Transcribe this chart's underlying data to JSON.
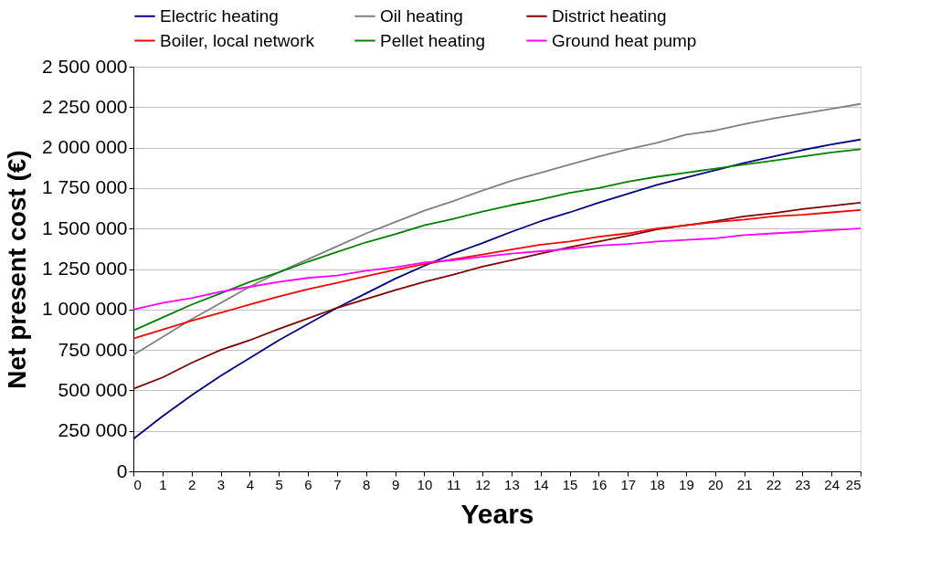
{
  "chart_data": {
    "type": "line",
    "xlabel": "Years",
    "ylabel": "Net present cost (€)",
    "x": [
      0,
      1,
      2,
      3,
      4,
      5,
      6,
      7,
      8,
      9,
      10,
      11,
      12,
      13,
      14,
      15,
      16,
      17,
      18,
      19,
      20,
      21,
      22,
      23,
      24,
      25
    ],
    "xlim": [
      0,
      25
    ],
    "xticks": [
      0,
      1,
      2,
      3,
      4,
      5,
      6,
      7,
      8,
      9,
      10,
      11,
      12,
      13,
      14,
      15,
      16,
      17,
      18,
      19,
      20,
      21,
      22,
      23,
      24,
      25
    ],
    "ylim": [
      0,
      2500000
    ],
    "yticks": [
      {
        "value": 0,
        "label": "0"
      },
      {
        "value": 250000,
        "label": "250 000"
      },
      {
        "value": 500000,
        "label": "500 000"
      },
      {
        "value": 750000,
        "label": "750 000"
      },
      {
        "value": 1000000,
        "label": "1 000 000"
      },
      {
        "value": 1250000,
        "label": "1 250 000"
      },
      {
        "value": 1500000,
        "label": "1 500 000"
      },
      {
        "value": 1750000,
        "label": "1 750 000"
      },
      {
        "value": 2000000,
        "label": "2 000 000"
      },
      {
        "value": 2250000,
        "label": "2 250 000"
      },
      {
        "value": 2500000,
        "label": "2 500 000"
      }
    ],
    "grid": "y",
    "legend": "top",
    "marker": "none",
    "line_style": "solid",
    "series": [
      {
        "name": "Electric heating",
        "color": "#000080",
        "values": [
          200000,
          340000,
          470000,
          590000,
          700000,
          810000,
          910000,
          1010000,
          1100000,
          1190000,
          1270000,
          1345000,
          1410000,
          1480000,
          1545000,
          1600000,
          1660000,
          1715000,
          1770000,
          1815000,
          1860000,
          1905000,
          1945000,
          1985000,
          2020000,
          2050000
        ]
      },
      {
        "name": "Oil heating",
        "color": "#808080",
        "values": [
          720000,
          830000,
          940000,
          1040000,
          1140000,
          1230000,
          1310000,
          1390000,
          1470000,
          1540000,
          1610000,
          1670000,
          1735000,
          1795000,
          1845000,
          1895000,
          1945000,
          1990000,
          2030000,
          2080000,
          2105000,
          2145000,
          2180000,
          2210000,
          2240000,
          2270000
        ]
      },
      {
        "name": "District heating",
        "color": "#800000",
        "values": [
          510000,
          580000,
          670000,
          750000,
          810000,
          880000,
          945000,
          1010000,
          1065000,
          1120000,
          1170000,
          1215000,
          1265000,
          1305000,
          1345000,
          1385000,
          1420000,
          1455000,
          1495000,
          1520000,
          1545000,
          1575000,
          1595000,
          1620000,
          1640000,
          1660000
        ]
      },
      {
        "name": "Boiler, local network",
        "color": "#ff0000",
        "values": [
          820000,
          875000,
          930000,
          980000,
          1030000,
          1080000,
          1125000,
          1165000,
          1205000,
          1245000,
          1280000,
          1310000,
          1340000,
          1370000,
          1400000,
          1420000,
          1450000,
          1470000,
          1500000,
          1520000,
          1540000,
          1555000,
          1575000,
          1585000,
          1600000,
          1615000
        ]
      },
      {
        "name": "Pellet heating",
        "color": "#008000",
        "values": [
          870000,
          950000,
          1030000,
          1100000,
          1170000,
          1230000,
          1295000,
          1355000,
          1415000,
          1465000,
          1520000,
          1560000,
          1605000,
          1645000,
          1680000,
          1720000,
          1750000,
          1790000,
          1820000,
          1845000,
          1870000,
          1895000,
          1920000,
          1945000,
          1970000,
          1990000
        ]
      },
      {
        "name": "Ground heat pump",
        "color": "#ff00ff",
        "values": [
          1000000,
          1040000,
          1070000,
          1110000,
          1140000,
          1170000,
          1195000,
          1210000,
          1240000,
          1260000,
          1290000,
          1305000,
          1325000,
          1345000,
          1360000,
          1375000,
          1395000,
          1405000,
          1420000,
          1430000,
          1440000,
          1460000,
          1470000,
          1480000,
          1490000,
          1500000
        ]
      }
    ]
  }
}
